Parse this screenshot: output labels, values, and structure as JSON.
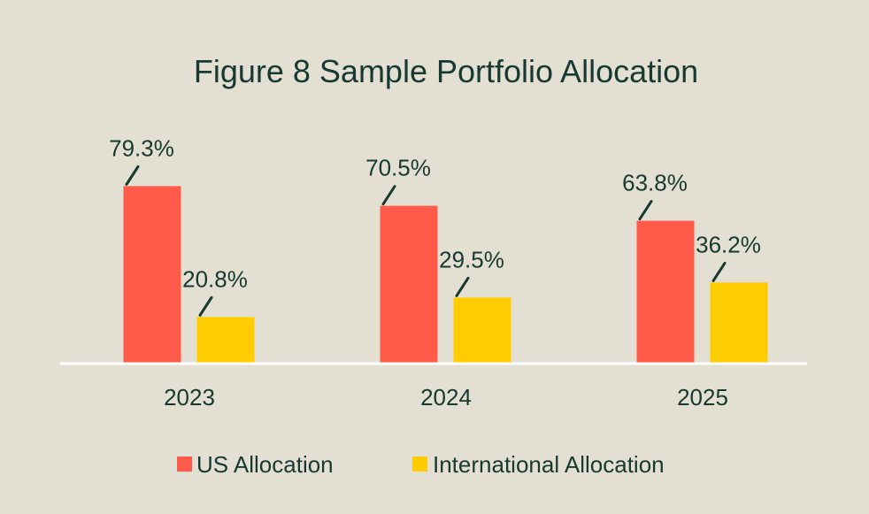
{
  "chart_data": {
    "type": "bar",
    "title": "Figure 8 Sample Portfolio Allocation",
    "categories": [
      "2023",
      "2024",
      "2025"
    ],
    "series": [
      {
        "name": "US Allocation",
        "color": "#ff5a4a",
        "values": [
          79.3,
          70.5,
          63.8
        ],
        "labels": [
          "79.3%",
          "70.5%",
          "63.8%"
        ]
      },
      {
        "name": "International Allocation",
        "color": "#ffcc00",
        "values": [
          20.8,
          29.5,
          36.2
        ],
        "labels": [
          "20.8%",
          "29.5%",
          "36.2%"
        ]
      }
    ],
    "ylim": [
      0,
      100
    ],
    "xlabel": "",
    "ylabel": "",
    "grid": false,
    "legend": "bottom-center"
  }
}
